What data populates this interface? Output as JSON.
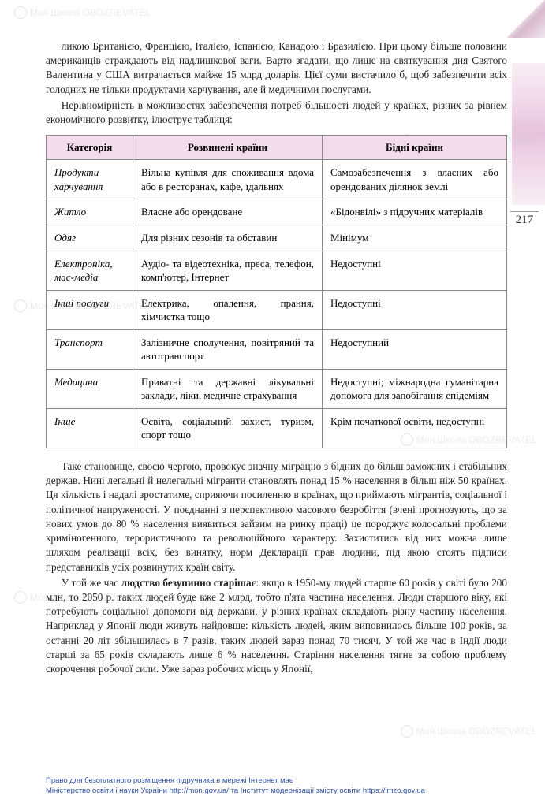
{
  "watermark_text": "Моя Школа OBOZREVATEL",
  "page_number": "217",
  "para1": "ликою Британією, Францією, Італією, Іспанією, Канадою і Бразилією. При цьому більше половини американців страждають від надлишкової ваги. Варто згадати, що лише на святкування дня Святого Валентина у США витрачається майже 15 млрд доларів. Цієї суми вистачило б, щоб забезпечити всіх голодних не тільки продуктами харчування, але й медичними послугами.",
  "para2": "Нерівномірність в можливостях забезпечення потреб більшості людей у країнах, різних за рівнем економічного розвитку, ілюструє таблиця:",
  "table": {
    "header_bg": "#f3dceb",
    "border_color": "#888888",
    "columns": [
      "Категорія",
      "Розвинені країни",
      "Бідні країни"
    ],
    "rows": [
      [
        "Продукти харчування",
        "Вільна купівля для споживання вдома або в ресторанах, кафе, їдальнях",
        "Самозабезпечення з власних або орендованих ділянок землі"
      ],
      [
        "Житло",
        "Власне або орендоване",
        "«Бідонвілі» з підручних матеріалів"
      ],
      [
        "Одяг",
        "Для різних сезонів та обставин",
        "Мінімум"
      ],
      [
        "Електроніка, мас-медіа",
        "Аудіо- та відеотехніка, преса, телефон, комп'ютер, Інтернет",
        "Недоступні"
      ],
      [
        "Інші послуги",
        "Електрика, опалення, прання, хімчистка тощо",
        "Недоступні"
      ],
      [
        "Транспорт",
        "Залізничне сполучення, повітряний та автотранспорт",
        "Недоступний"
      ],
      [
        "Медицина",
        "Приватні та державні лікувальні заклади, ліки, медичне страхування",
        "Недоступні; міжнародна гуманітарна допомога для запобігання епідеміям"
      ],
      [
        "Інше",
        "Освіта, соціальний захист, туризм, спорт тощо",
        "Крім початкової освіти, недоступні"
      ]
    ]
  },
  "para3": "Таке становище, своєю чергою, провокує значну міграцію з бідних до більш заможних і стабільних держав. Нині легальні й нелегальні мігранти становлять понад 15 % населення в більш ніж 50 країнах. Ця кількість і надалі зростатиме, сприяючи посиленню в країнах, що приймають мігрантів, соціальної і політичної напруженості. У поєднанні з перспективою масового безробіття (вчені прогнозують, що за нових умов до 80 % населення виявиться зайвим на ринку праці) це породжує колосальні проблеми криміногенного, терористичного та революційного характеру. Захиститись від них можна лише шляхом реалізації всіх, без винятку, норм Декларації прав людини, під якою стоять підписи представників усіх розвинутих країн світу.",
  "para4_pre": "У той же час ",
  "para4_bold": "людство безупинно старішає",
  "para4_post": ": якщо в 1950-му людей старше 60 років у світі було 200 млн, то 2050 р. таких людей буде вже 2 млрд, тобто п'ята частина населення. Люди старшого віку, які потребують соціальної допомоги від держави, у різних країнах складають різну частину населення. Наприклад у Японії люди живуть найдовше: кількість людей, яким виповнилось більше 100 років, за останні 20 літ збільшилась в 7 разів, таких людей зараз понад 70 тисяч. У той же час в Індії люди старші за 65 років складають лише 6 % населення. Старіння населення тягне за собою проблему скорочення робочої сили. Уже зараз робочих місць у Японії,",
  "footer_line1": "Право для безоплатного розміщення підручника в мережі Інтернет має",
  "footer_line2": "Міністерство освіти і науки України http://mon.gov.ua/ та Інститут модернізації змісту освіти https://imzo.gov.ua"
}
